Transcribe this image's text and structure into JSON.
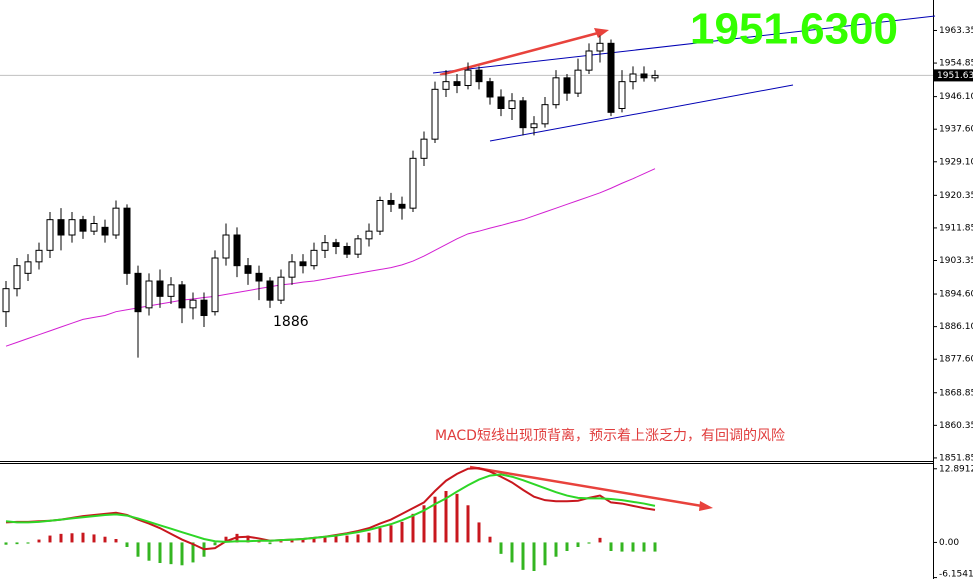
{
  "chart_data": [
    {
      "type": "candlestick",
      "big_label": "1951.6300",
      "annotations": [
        "1886",
        "MACD短线出现顶背离，预示着上涨乏力，有回调的风险"
      ],
      "last_price": 1951.63,
      "ylim": [
        1851.05,
        1971.3
      ],
      "yticks": [
        1963.35,
        1954.85,
        {
          "value": 1946.1,
          "label": "1946.10"
        },
        {
          "value": 1937.6,
          "label": "1937.60"
        },
        {
          "value": 1929.1,
          "label": "1929.10"
        },
        1920.35,
        1911.85,
        1903.35,
        {
          "value": 1894.6,
          "label": "1894.60"
        },
        {
          "value": 1886.1,
          "label": "1886.10"
        },
        {
          "value": 1877.6,
          "label": "1877.60"
        },
        1868.85,
        1860.35,
        1851.85
      ],
      "up_color": "#ffffff",
      "down_color": "#000000",
      "candles": {
        "open": [
          1890,
          1896,
          1900,
          1903,
          1906,
          1914,
          1910,
          1914,
          1911,
          1912,
          1910,
          1917,
          1900,
          1891,
          1898,
          1894,
          1897,
          1891,
          1893,
          1890,
          1904,
          1910,
          1902,
          1900,
          1898,
          1893,
          1899,
          1903,
          1902,
          1906,
          1908,
          1907,
          1905,
          1909,
          1911,
          1919,
          1918,
          1917,
          1930,
          1935,
          1948,
          1950,
          1949,
          1953,
          1950,
          1946,
          1943,
          1945,
          1938,
          1939,
          1944,
          1951,
          1947,
          1953,
          1958,
          1960,
          1943,
          1950,
          1952,
          1951
        ],
        "high": [
          1898,
          1904,
          1905,
          1908,
          1916,
          1917,
          1916,
          1915,
          1915,
          1914,
          1919,
          1918,
          1902,
          1900,
          1901,
          1899,
          1898,
          1895,
          1895,
          1906,
          1913,
          1912,
          1904,
          1902,
          1899,
          1901,
          1905,
          1905,
          1908,
          1910,
          1909,
          1908,
          1910,
          1913,
          1920,
          1921,
          1920,
          1932,
          1937,
          1950,
          1953,
          1952,
          1955,
          1954,
          1951,
          1948,
          1947,
          1946,
          1941,
          1946,
          1953,
          1952,
          1956,
          1960,
          1962,
          1961,
          1953,
          1954,
          1954,
          1953
        ],
        "low": [
          1886,
          1894,
          1898,
          1901,
          1904,
          1906,
          1908,
          1909,
          1910,
          1908,
          1909,
          1897,
          1878,
          1889,
          1891,
          1892,
          1887,
          1888,
          1886,
          1889,
          1902,
          1899,
          1897,
          1893,
          1891,
          1892,
          1897,
          1900,
          1901,
          1904,
          1905,
          1904,
          1904,
          1907,
          1910,
          1916,
          1914,
          1916,
          1928,
          1934,
          1946,
          1947,
          1948,
          1948,
          1944,
          1941,
          1940,
          1936,
          1936,
          1938,
          1943,
          1945,
          1946,
          1952,
          1955,
          1941,
          1942,
          1948,
          1950,
          1950
        ],
        "close": [
          1896,
          1902,
          1903,
          1906,
          1914,
          1910,
          1914,
          1911,
          1913,
          1910,
          1917,
          1900,
          1890,
          1898,
          1894,
          1897,
          1891,
          1893,
          1889,
          1904,
          1910,
          1902,
          1900,
          1898,
          1893,
          1899,
          1903,
          1902,
          1906,
          1908,
          1907,
          1905,
          1909,
          1911,
          1919,
          1918,
          1917,
          1930,
          1935,
          1948,
          1950,
          1949,
          1953,
          1950,
          1946,
          1943,
          1945,
          1938,
          1939,
          1944,
          1951,
          1947,
          1953,
          1958,
          1960,
          1942,
          1950,
          1952,
          1951,
          1951.63
        ]
      },
      "ma": {
        "color": "#d21ed2",
        "values": [
          1881,
          1882,
          1883,
          1884,
          1885,
          1886,
          1887,
          1888,
          1888.5,
          1889,
          1890,
          1890.5,
          1891,
          1891.5,
          1892,
          1892.5,
          1893,
          1893.3,
          1893.7,
          1894,
          1894.5,
          1895,
          1895.5,
          1896,
          1896.5,
          1897,
          1897.3,
          1897.7,
          1898,
          1898.5,
          1899,
          1899.5,
          1900,
          1900.5,
          1901,
          1901.5,
          1902.2,
          1903.2,
          1904.5,
          1906,
          1907.5,
          1909,
          1910.3,
          1911,
          1911.8,
          1912.5,
          1913.3,
          1914,
          1915,
          1916,
          1917,
          1918,
          1919,
          1920,
          1921,
          1922.2,
          1923.5,
          1924.7,
          1926,
          1927.3
        ]
      }
    },
    {
      "type": "macd",
      "ylim": [
        -6.4,
        13.9
      ],
      "yticks": [
        12.8912,
        {
          "value": 0,
          "label": "0.00"
        },
        -6.1541
      ],
      "histogram": {
        "up_color": "#c8171e",
        "down_color": "#34b521",
        "values": [
          -0.4,
          -0.3,
          -0.2,
          0.5,
          1.2,
          1.5,
          1.6,
          1.7,
          1.4,
          1.0,
          0.6,
          -0.8,
          -2.5,
          -3.2,
          -3.6,
          -3.8,
          -4.0,
          -3.5,
          -2.5,
          -0.5,
          1.0,
          1.5,
          1.2,
          0.3,
          -0.3,
          0.2,
          0.4,
          0.6,
          0.8,
          1.0,
          1.1,
          1.2,
          1.4,
          1.7,
          2.5,
          3.0,
          3.6,
          5.0,
          6.5,
          8.0,
          9.0,
          8.5,
          6.5,
          3.5,
          1.0,
          -2.0,
          -3.5,
          -4.8,
          -5.0,
          -4.0,
          -2.5,
          -1.5,
          -0.8,
          -0.2,
          0.8,
          -1.5,
          -1.6,
          -1.6,
          -1.6,
          -1.6
        ]
      },
      "lines": [
        {
          "color": "#c8171e",
          "values": [
            3.5,
            3.6,
            3.6,
            3.7,
            3.8,
            4.0,
            4.3,
            4.6,
            4.8,
            5.0,
            5.2,
            4.8,
            4.0,
            3.3,
            2.5,
            1.5,
            0.5,
            -0.3,
            -1.2,
            -1.0,
            0.2,
            0.9,
            1.0,
            0.7,
            0.3,
            0.4,
            0.5,
            0.6,
            0.8,
            1.0,
            1.3,
            1.6,
            2.0,
            2.5,
            3.3,
            4.0,
            5.0,
            6.0,
            7.0,
            9.0,
            10.8,
            12.0,
            12.9,
            13.0,
            12.4,
            11.5,
            10.5,
            9.2,
            8.0,
            7.4,
            7.2,
            7.2,
            7.3,
            7.8,
            8.2,
            7.0,
            6.8,
            6.4,
            6.0,
            5.7
          ]
        },
        {
          "color": "#2ed627",
          "values": [
            3.7,
            3.5,
            3.5,
            3.6,
            3.8,
            4.0,
            4.2,
            4.4,
            4.6,
            4.8,
            4.9,
            4.7,
            4.2,
            3.6,
            3.0,
            2.4,
            1.8,
            1.2,
            0.6,
            0.2,
            0.1,
            0.2,
            0.2,
            0.3,
            0.3,
            0.4,
            0.5,
            0.6,
            0.8,
            1.0,
            1.2,
            1.5,
            1.8,
            2.2,
            2.7,
            3.2,
            3.9,
            4.7,
            5.6,
            6.7,
            7.7,
            8.9,
            10.0,
            11.0,
            11.7,
            11.9,
            11.5,
            10.9,
            10.2,
            9.5,
            8.8,
            8.2,
            7.8,
            7.7,
            7.7,
            7.6,
            7.4,
            7.1,
            6.8,
            6.4
          ]
        }
      ]
    }
  ]
}
